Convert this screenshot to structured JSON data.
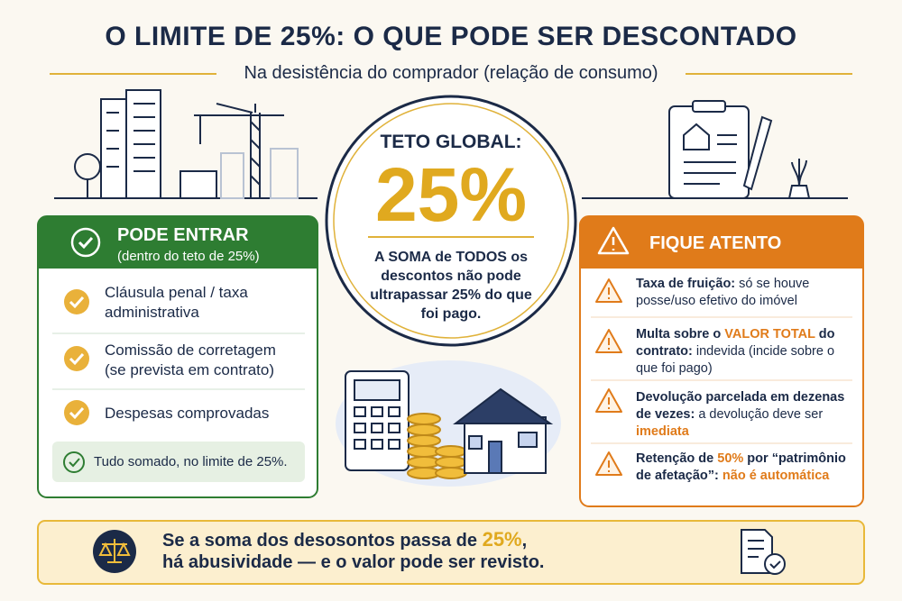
{
  "header": {
    "title": "O LIMITE DE 25%: O QUE PODE SER DESCONTADO",
    "subtitle": "Na desistência do comprador (relação de consumo)"
  },
  "center": {
    "label": "TETO GLOBAL:",
    "value": "25%",
    "text": "A SOMA de TODOS os descontos não pode ultrapassar 25% do que foi pago."
  },
  "left_panel": {
    "title": "PODE ENTRAR",
    "subtitle": "(dentro do teto de 25%)",
    "items": [
      "Cláusula penal / taxa administrativa",
      "Comissão de corretagem (se prevista em contrato)",
      "Despesas comprovadas"
    ],
    "note": "Tudo somado, no limite de 25%."
  },
  "right_panel": {
    "title": "FIQUE ATENTO",
    "items": [
      {
        "parts": [
          "Taxa de fruição:",
          " só se houve posse/uso efetivo do imóvel"
        ]
      },
      {
        "parts": [
          "Multa sobre o ",
          "VALOR TOTAL",
          " do contrato:",
          " indevida (incide sobre o que foi pago)"
        ]
      },
      {
        "parts": [
          "Devolução parcelada em dezenas de vezes:",
          " a devolução deve ser ",
          "imediata"
        ]
      },
      {
        "parts": [
          "Retenção de ",
          "50%",
          " por “patrimônio de afetação”:",
          " não é automática"
        ]
      }
    ]
  },
  "footer": {
    "parts": [
      "Se a soma dos desosontos passa de ",
      "25%",
      ","
    ],
    "line2": "há abusividade — e o valor pode ser revisto."
  }
}
